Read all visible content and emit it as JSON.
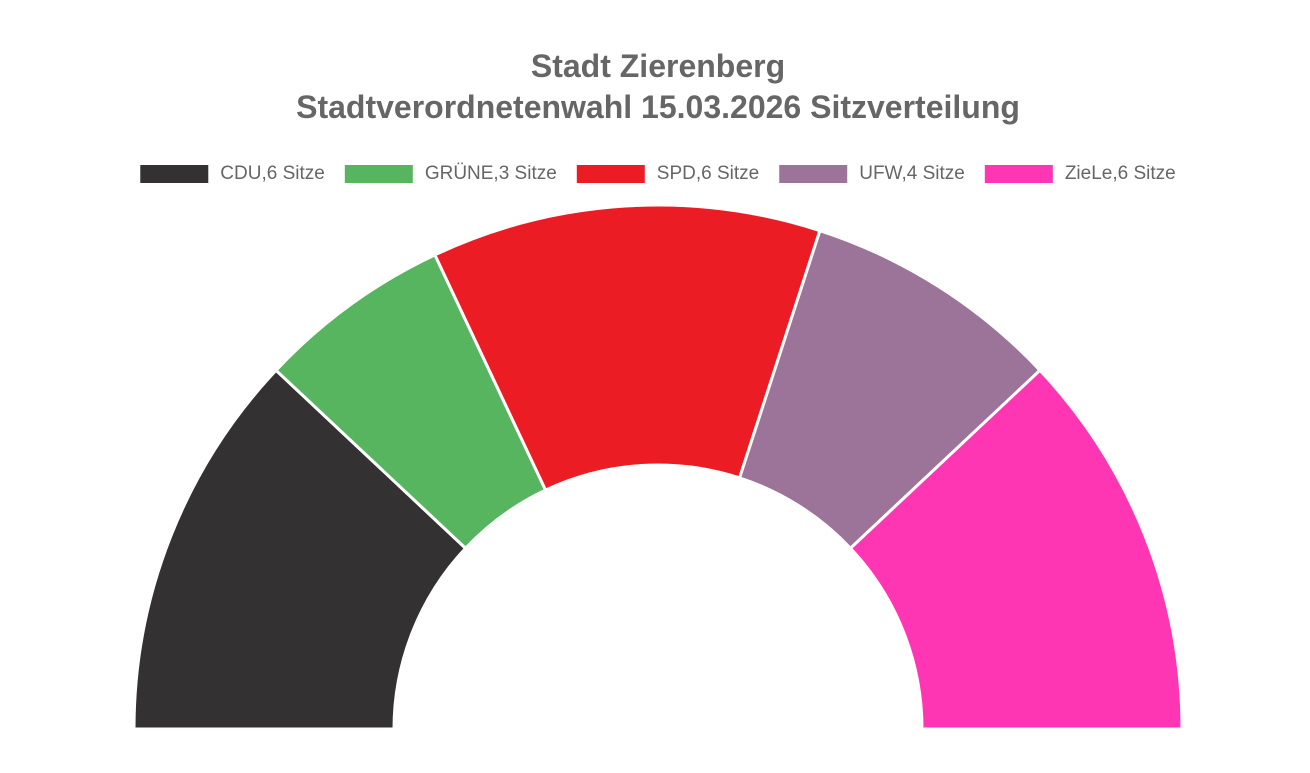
{
  "chart_data": {
    "type": "pie",
    "title": "Stadt Zierenberg",
    "subtitle": "Stadtverordnetenwahl 15.03.2026 Sitzverteilung",
    "categories": [
      "CDU,6 Sitze",
      "GRÜNE,3 Sitze",
      "SPD,6 Sitze",
      "UFW,4 Sitze",
      "ZieLe,6 Sitze"
    ],
    "values": [
      6,
      3,
      6,
      4,
      6
    ],
    "colors": [
      "#333132",
      "#57b560",
      "#ec1c24",
      "#9c7399",
      "#ff36b4"
    ],
    "legend": "top"
  }
}
